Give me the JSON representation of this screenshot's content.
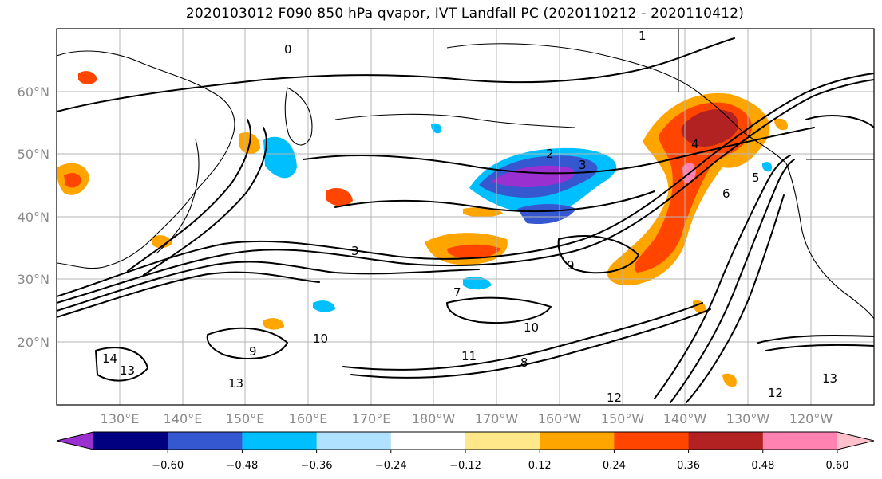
{
  "title": "2020103012 F090 850 hPa qvapor, IVT Landfall PC (2020110212 - 2020110412)",
  "map": {
    "lat_labels": [
      "60°N",
      "50°N",
      "40°N",
      "30°N",
      "20°N"
    ],
    "lon_labels": [
      "130°E",
      "140°E",
      "150°E",
      "160°E",
      "170°E",
      "180°W",
      "170°W",
      "160°W",
      "150°W",
      "140°W",
      "130°W",
      "120°W"
    ],
    "contour_labels": [
      "0",
      "1",
      "2",
      "3",
      "4",
      "5",
      "6",
      "9",
      "9",
      "10",
      "10",
      "11",
      "12",
      "12",
      "13",
      "13",
      "13",
      "14",
      "7",
      "3",
      "8"
    ]
  },
  "colorbar": {
    "ticks": [
      "−0.60",
      "−0.48",
      "−0.36",
      "−0.24",
      "−0.12",
      "0.12",
      "0.24",
      "0.36",
      "0.48",
      "0.60"
    ],
    "colors": [
      "#9b30d0",
      "#000080",
      "#3558d0",
      "#00bfff",
      "#b0e2ff",
      "#ffffff",
      "#ffe88a",
      "#ffa500",
      "#ff4500",
      "#b22222",
      "#ff82b0",
      "#ffc0cb"
    ]
  }
}
